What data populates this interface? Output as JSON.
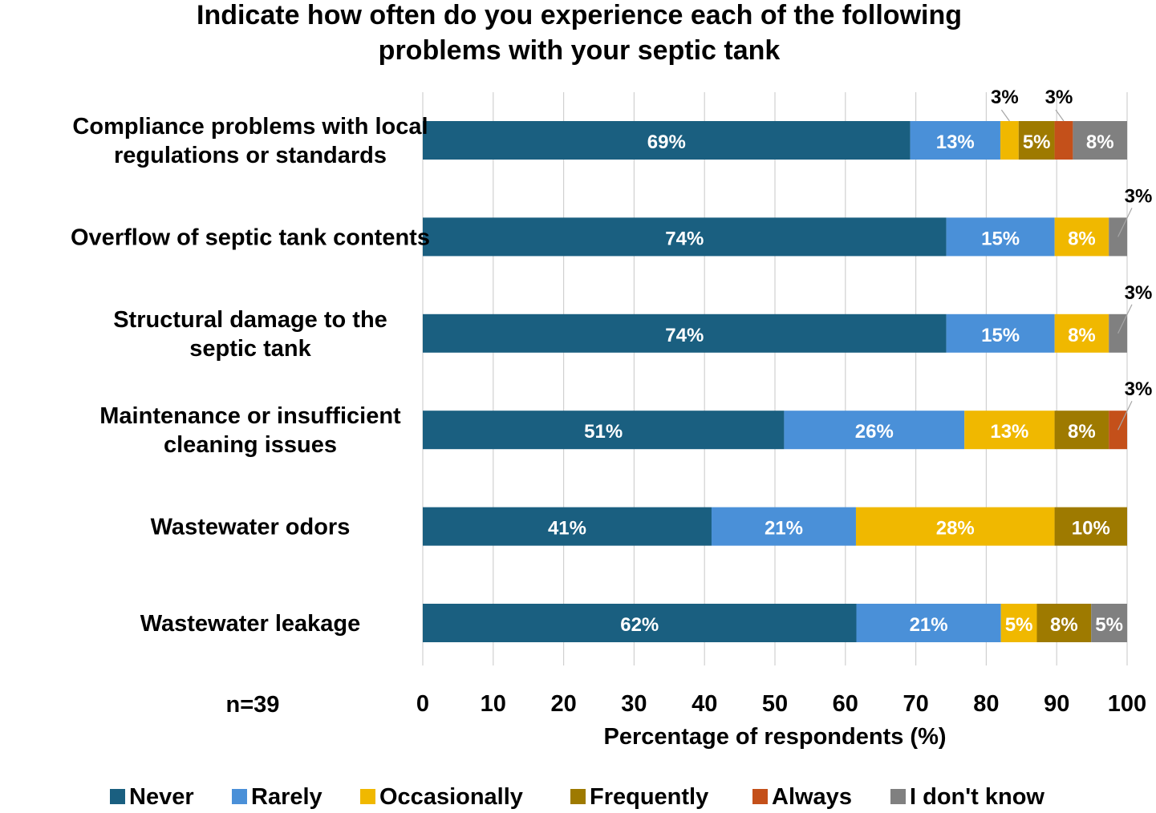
{
  "chart_data": {
    "type": "bar",
    "orientation": "horizontal",
    "stacked": true,
    "title": "Indicate how often do you experience each of the following problems with your septic tank",
    "title_lines": [
      "Indicate how often do you experience each of the following",
      "problems with your septic tank"
    ],
    "xlabel": "Percentage of respondents (%)",
    "xlim": [
      0,
      100
    ],
    "xticks": [
      0,
      10,
      20,
      30,
      40,
      50,
      60,
      70,
      80,
      90,
      100
    ],
    "grid": true,
    "legend_position": "bottom",
    "note": "n=39",
    "categories": [
      [
        "Compliance problems with local",
        "regulations or standards"
      ],
      [
        "Overflow of septic tank contents"
      ],
      [
        "Structural damage to the",
        "septic tank"
      ],
      [
        "Maintenance or insufficient",
        "cleaning issues"
      ],
      [
        "Wastewater odors"
      ],
      [
        "Wastewater leakage"
      ]
    ],
    "series": [
      {
        "name": "Never",
        "color": "#1a5f80",
        "values": [
          69.2,
          74.4,
          74.4,
          51.3,
          41.0,
          61.5
        ],
        "labels": [
          "69%",
          "74%",
          "74%",
          "51%",
          "41%",
          "62%"
        ]
      },
      {
        "name": "Rarely",
        "color": "#4a90d8",
        "values": [
          12.8,
          15.4,
          15.4,
          25.6,
          20.5,
          20.5
        ],
        "labels": [
          "13%",
          "15%",
          "15%",
          "26%",
          "21%",
          "21%"
        ]
      },
      {
        "name": "Occasionally",
        "color": "#f0b800",
        "values": [
          2.6,
          7.7,
          7.7,
          12.8,
          28.2,
          5.1
        ],
        "labels": [
          "3%",
          "8%",
          "8%",
          "13%",
          "28%",
          "5%"
        ]
      },
      {
        "name": "Frequently",
        "color": "#9e7a00",
        "values": [
          5.1,
          0,
          0,
          7.7,
          10.3,
          7.7
        ],
        "labels": [
          "5%",
          "",
          "",
          "8%",
          "10%",
          "8%"
        ]
      },
      {
        "name": "Always",
        "color": "#c4501a",
        "values": [
          2.6,
          0,
          0,
          2.6,
          0,
          0
        ],
        "labels": [
          "3%",
          "",
          "",
          "3%",
          "",
          ""
        ]
      },
      {
        "name": "I don't know",
        "color": "#808080",
        "values": [
          7.7,
          2.6,
          2.6,
          0,
          0,
          5.1
        ],
        "labels": [
          "8%",
          "3%",
          "3%",
          "",
          "",
          "5%"
        ]
      }
    ]
  }
}
